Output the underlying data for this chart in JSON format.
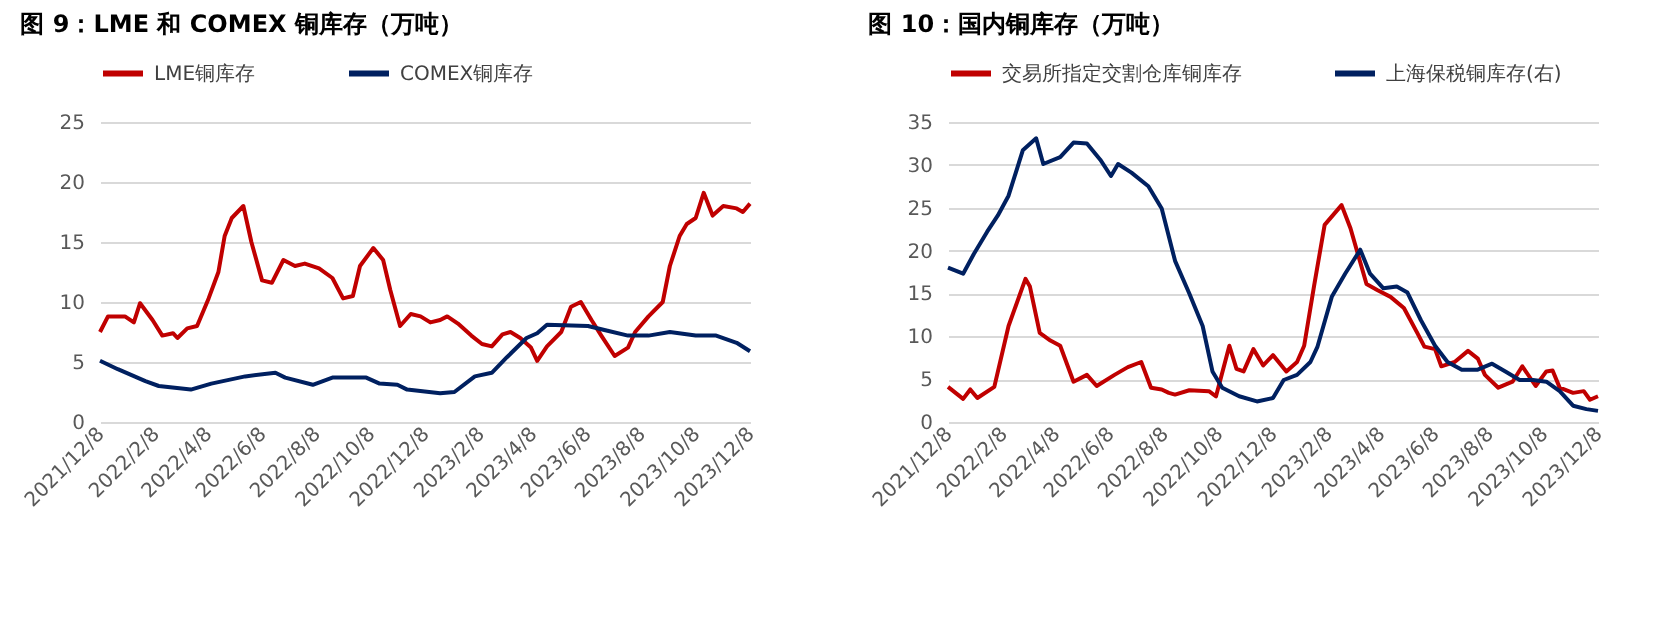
{
  "chart_data": [
    {
      "type": "line",
      "title": "图 9：LME 和 COMEX 铜库存（万吨）",
      "legend": "top",
      "grid": "y",
      "line_style": "solid",
      "marker": "none",
      "xlim": [
        "2021-12-08",
        "2023-12-08"
      ],
      "ylim": [
        0,
        25
      ],
      "yticks": [
        0,
        5,
        10,
        15,
        20,
        25
      ],
      "xticks": [
        {
          "value": "2021-12-08",
          "label": "2021/12/8"
        },
        {
          "value": "2022-02-08",
          "label": "2022/2/8"
        },
        {
          "value": "2022-04-08",
          "label": "2022/4/8"
        },
        {
          "value": "2022-06-08",
          "label": "2022/6/8"
        },
        {
          "value": "2022-08-08",
          "label": "2022/8/8"
        },
        {
          "value": "2022-10-08",
          "label": "2022/10/8"
        },
        {
          "value": "2022-12-08",
          "label": "2022/12/8"
        },
        {
          "value": "2023-02-08",
          "label": "2023/2/8"
        },
        {
          "value": "2023-04-08",
          "label": "2023/4/8"
        },
        {
          "value": "2023-06-08",
          "label": "2023/6/8"
        },
        {
          "value": "2023-08-08",
          "label": "2023/8/8"
        },
        {
          "value": "2023-10-08",
          "label": "2023/10/8"
        },
        {
          "value": "2023-12-08",
          "label": "2023/12/8"
        }
      ],
      "series": [
        {
          "name": "LME铜库存",
          "color": "#c00000",
          "x": [
            "2021-12-08",
            "2021-12-17",
            "2022-01-05",
            "2022-01-15",
            "2022-01-22",
            "2022-02-05",
            "2022-02-16",
            "2022-02-28",
            "2022-03-05",
            "2022-03-16",
            "2022-03-27",
            "2022-04-09",
            "2022-04-20",
            "2022-04-27",
            "2022-05-05",
            "2022-05-18",
            "2022-05-27",
            "2022-06-08",
            "2022-06-19",
            "2022-07-02",
            "2022-07-15",
            "2022-07-26",
            "2022-08-11",
            "2022-08-26",
            "2022-09-07",
            "2022-09-18",
            "2022-09-26",
            "2022-10-11",
            "2022-10-22",
            "2022-10-30",
            "2022-11-10",
            "2022-11-22",
            "2022-12-03",
            "2022-12-14",
            "2022-12-25",
            "2023-01-02",
            "2023-01-14",
            "2023-01-29",
            "2023-02-10",
            "2023-02-21",
            "2023-03-05",
            "2023-03-14",
            "2023-03-25",
            "2023-04-06",
            "2023-04-13",
            "2023-04-24",
            "2023-05-10",
            "2023-05-21",
            "2023-06-01",
            "2023-06-13",
            "2023-06-24",
            "2023-07-09",
            "2023-07-24",
            "2023-08-01",
            "2023-08-16",
            "2023-09-01",
            "2023-09-09",
            "2023-09-20",
            "2023-09-28",
            "2023-10-08",
            "2023-10-17",
            "2023-10-27",
            "2023-11-08",
            "2023-11-23",
            "2023-11-30",
            "2023-12-08"
          ],
          "values": [
            7.5,
            8.8,
            8.8,
            8.3,
            9.9,
            8.5,
            7.2,
            7.4,
            7.0,
            7.8,
            8.0,
            10.3,
            12.5,
            15.5,
            17.0,
            18.0,
            15.0,
            11.8,
            11.6,
            13.5,
            13.0,
            13.2,
            12.8,
            12.0,
            10.3,
            10.5,
            13.0,
            14.5,
            13.5,
            11.0,
            8.0,
            9.0,
            8.8,
            8.3,
            8.5,
            8.8,
            8.2,
            7.2,
            6.5,
            6.3,
            7.3,
            7.5,
            7.0,
            6.2,
            5.1,
            6.3,
            7.5,
            9.6,
            10.0,
            8.5,
            7.2,
            5.5,
            6.2,
            7.5,
            8.8,
            10.0,
            13.0,
            15.5,
            16.5,
            17.0,
            19.1,
            17.2,
            18.0,
            17.8,
            17.5,
            18.2
          ]
        },
        {
          "name": "COMEX铜库存",
          "color": "#002060",
          "x": [
            "2021-12-08",
            "2021-12-28",
            "2022-01-28",
            "2022-02-12",
            "2022-03-20",
            "2022-04-12",
            "2022-05-20",
            "2022-06-23",
            "2022-07-04",
            "2022-08-04",
            "2022-08-26",
            "2022-10-03",
            "2022-10-18",
            "2022-11-07",
            "2022-11-18",
            "2022-12-25",
            "2023-01-10",
            "2023-02-02",
            "2023-02-21",
            "2023-03-10",
            "2023-04-01",
            "2023-04-13",
            "2023-04-24",
            "2023-06-09",
            "2023-07-01",
            "2023-07-24",
            "2023-08-16",
            "2023-09-09",
            "2023-10-08",
            "2023-10-31",
            "2023-11-23",
            "2023-12-08"
          ],
          "values": [
            5.1,
            4.4,
            3.4,
            3.0,
            2.7,
            3.2,
            3.8,
            4.1,
            3.7,
            3.1,
            3.7,
            3.7,
            3.2,
            3.1,
            2.7,
            2.4,
            2.5,
            3.8,
            4.1,
            5.4,
            7.0,
            7.4,
            8.1,
            8.0,
            7.6,
            7.2,
            7.2,
            7.5,
            7.2,
            7.2,
            6.6,
            5.9
          ]
        }
      ]
    },
    {
      "type": "line",
      "title": "图 10：国内铜库存（万吨）",
      "legend": "top",
      "grid": "y",
      "line_style": "solid",
      "marker": "none",
      "xlim": [
        "2021-12-08",
        "2023-12-08"
      ],
      "ylim": [
        0,
        35
      ],
      "yticks": [
        0,
        5,
        10,
        15,
        20,
        25,
        30,
        35
      ],
      "xticks": [
        {
          "value": "2021-12-08",
          "label": "2021/12/8"
        },
        {
          "value": "2022-02-08",
          "label": "2022/2/8"
        },
        {
          "value": "2022-04-08",
          "label": "2022/4/8"
        },
        {
          "value": "2022-06-08",
          "label": "2022/6/8"
        },
        {
          "value": "2022-08-08",
          "label": "2022/8/8"
        },
        {
          "value": "2022-10-08",
          "label": "2022/10/8"
        },
        {
          "value": "2022-12-08",
          "label": "2022/12/8"
        },
        {
          "value": "2023-02-08",
          "label": "2023/2/8"
        },
        {
          "value": "2023-04-08",
          "label": "2023/4/8"
        },
        {
          "value": "2023-06-08",
          "label": "2023/6/8"
        },
        {
          "value": "2023-08-08",
          "label": "2023/8/8"
        },
        {
          "value": "2023-10-08",
          "label": "2023/10/8"
        },
        {
          "value": "2023-12-08",
          "label": "2023/12/8"
        }
      ],
      "series": [
        {
          "name": "交易所指定交割仓库铜库存",
          "color": "#c00000",
          "x": [
            "2021-12-08",
            "2021-12-25",
            "2022-01-02",
            "2022-01-10",
            "2022-01-29",
            "2022-02-14",
            "2022-03-05",
            "2022-03-10",
            "2022-03-21",
            "2022-04-02",
            "2022-04-13",
            "2022-04-28",
            "2022-05-13",
            "2022-05-24",
            "2022-06-13",
            "2022-06-28",
            "2022-07-13",
            "2022-07-24",
            "2022-08-05",
            "2022-08-13",
            "2022-08-20",
            "2022-09-05",
            "2022-09-27",
            "2022-10-05",
            "2022-10-20",
            "2022-10-28",
            "2022-11-05",
            "2022-11-16",
            "2022-11-27",
            "2022-12-08",
            "2022-12-23",
            "2023-01-04",
            "2023-01-12",
            "2023-01-23",
            "2023-02-04",
            "2023-02-23",
            "2023-03-05",
            "2023-03-23",
            "2023-04-04",
            "2023-04-19",
            "2023-05-04",
            "2023-05-19",
            "2023-05-27",
            "2023-06-08",
            "2023-06-15",
            "2023-06-30",
            "2023-07-15",
            "2023-07-26",
            "2023-08-03",
            "2023-08-18",
            "2023-09-03",
            "2023-09-14",
            "2023-09-29",
            "2023-10-11",
            "2023-10-18",
            "2023-10-26",
            "2023-11-10",
            "2023-11-22",
            "2023-11-29",
            "2023-12-08"
          ],
          "values": [
            4.1,
            2.7,
            3.8,
            2.8,
            4.1,
            11.2,
            16.7,
            15.8,
            10.4,
            9.5,
            8.9,
            4.7,
            5.5,
            4.2,
            5.5,
            6.4,
            7.0,
            4.0,
            3.8,
            3.4,
            3.2,
            3.7,
            3.6,
            3.0,
            8.9,
            6.2,
            5.9,
            8.5,
            6.6,
            7.8,
            5.9,
            7.0,
            8.9,
            15.8,
            23.0,
            25.3,
            22.6,
            16.1,
            15.4,
            14.6,
            13.3,
            10.4,
            8.8,
            8.5,
            6.5,
            7.0,
            8.3,
            7.4,
            5.5,
            4.0,
            4.7,
            6.5,
            4.2,
            5.9,
            6.0,
            4.0,
            3.4,
            3.6,
            2.6,
            3.0
          ]
        },
        {
          "name": "上海保税铜库存(右)",
          "color": "#002060",
          "x": [
            "2021-12-08",
            "2021-12-25",
            "2022-01-06",
            "2022-01-21",
            "2022-02-02",
            "2022-02-14",
            "2022-03-02",
            "2022-03-17",
            "2022-03-25",
            "2022-04-13",
            "2022-04-28",
            "2022-05-13",
            "2022-05-28",
            "2022-06-09",
            "2022-06-17",
            "2022-07-02",
            "2022-07-21",
            "2022-08-05",
            "2022-08-20",
            "2022-09-05",
            "2022-09-20",
            "2022-10-01",
            "2022-10-12",
            "2022-10-31",
            "2022-11-20",
            "2022-12-08",
            "2022-12-20",
            "2023-01-04",
            "2023-01-19",
            "2023-01-27",
            "2023-02-12",
            "2023-02-27",
            "2023-03-16",
            "2023-03-27",
            "2023-04-11",
            "2023-04-26",
            "2023-05-08",
            "2023-05-23",
            "2023-06-08",
            "2023-06-22",
            "2023-07-08",
            "2023-07-26",
            "2023-08-11",
            "2023-08-26",
            "2023-09-11",
            "2023-09-26",
            "2023-10-11",
            "2023-10-26",
            "2023-11-10",
            "2023-11-25",
            "2023-12-08"
          ],
          "values": [
            18.0,
            17.3,
            19.6,
            22.2,
            24.1,
            26.4,
            31.7,
            33.1,
            30.1,
            30.9,
            32.6,
            32.5,
            30.6,
            28.7,
            30.1,
            29.1,
            27.5,
            24.9,
            18.8,
            15.0,
            11.2,
            5.9,
            4.0,
            3.0,
            2.4,
            2.8,
            4.9,
            5.5,
            7.0,
            8.8,
            14.6,
            17.3,
            20.1,
            17.3,
            15.6,
            15.8,
            15.1,
            11.9,
            8.9,
            7.0,
            6.1,
            6.1,
            6.8,
            5.9,
            4.9,
            4.9,
            4.7,
            3.6,
            1.9,
            1.5,
            1.3
          ]
        }
      ]
    }
  ]
}
